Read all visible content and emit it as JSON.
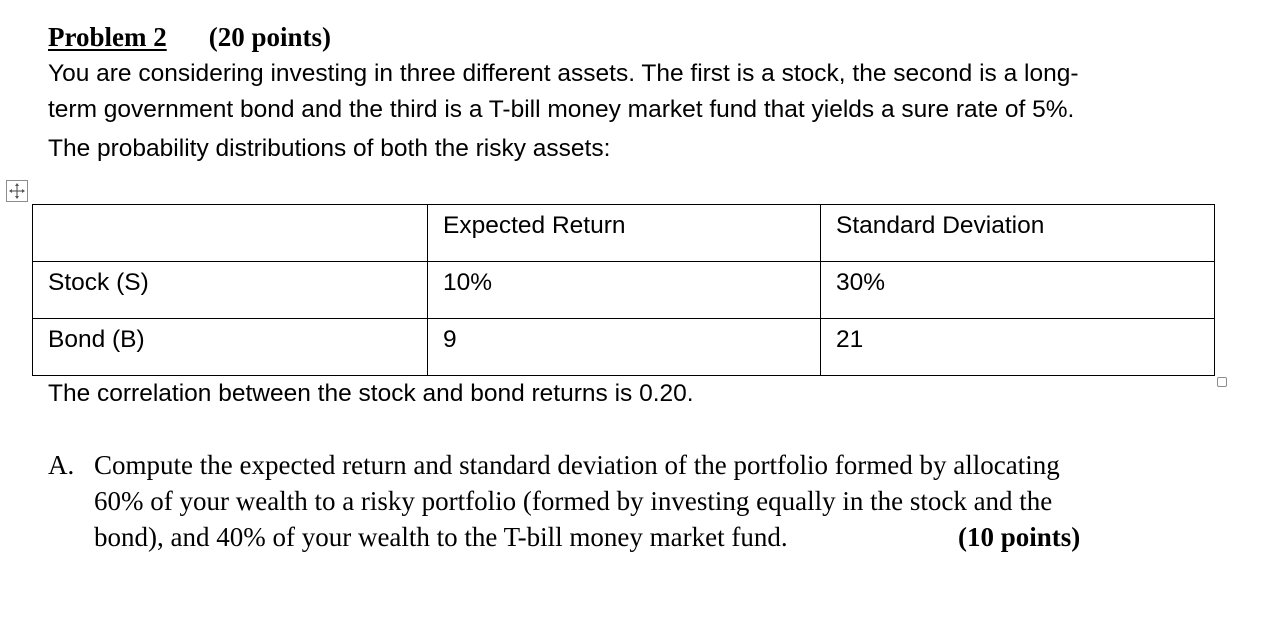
{
  "problem": {
    "label": "Problem 2",
    "points": "(20 points)"
  },
  "intro": {
    "lines": [
      "You are considering investing in three different assets. The first is a stock, the second is a long-",
      "term government bond and the third is a T-bill money market fund that yields a sure rate of 5%.",
      "The probability distributions of both the risky assets:"
    ]
  },
  "table": {
    "headers": [
      "",
      "Expected Return",
      "Standard Deviation"
    ],
    "rows": [
      [
        "Stock (S)",
        "10%",
        "30%"
      ],
      [
        "Bond (B)",
        "9",
        "21"
      ]
    ]
  },
  "correlation_note": "The correlation between the stock and bond returns is 0.20.",
  "question_a": {
    "letter": "A.",
    "lines": [
      "Compute the expected return and standard deviation of the portfolio formed by allocating",
      "60% of your wealth to a risky portfolio (formed by investing equally in the stock and the",
      "bond), and 40% of your wealth to the T-bill money market fund."
    ],
    "points": "(10 points)"
  },
  "icons": {
    "table_move_handle": "move-arrows-icon",
    "table_resize_handle": "resize-square-icon"
  }
}
